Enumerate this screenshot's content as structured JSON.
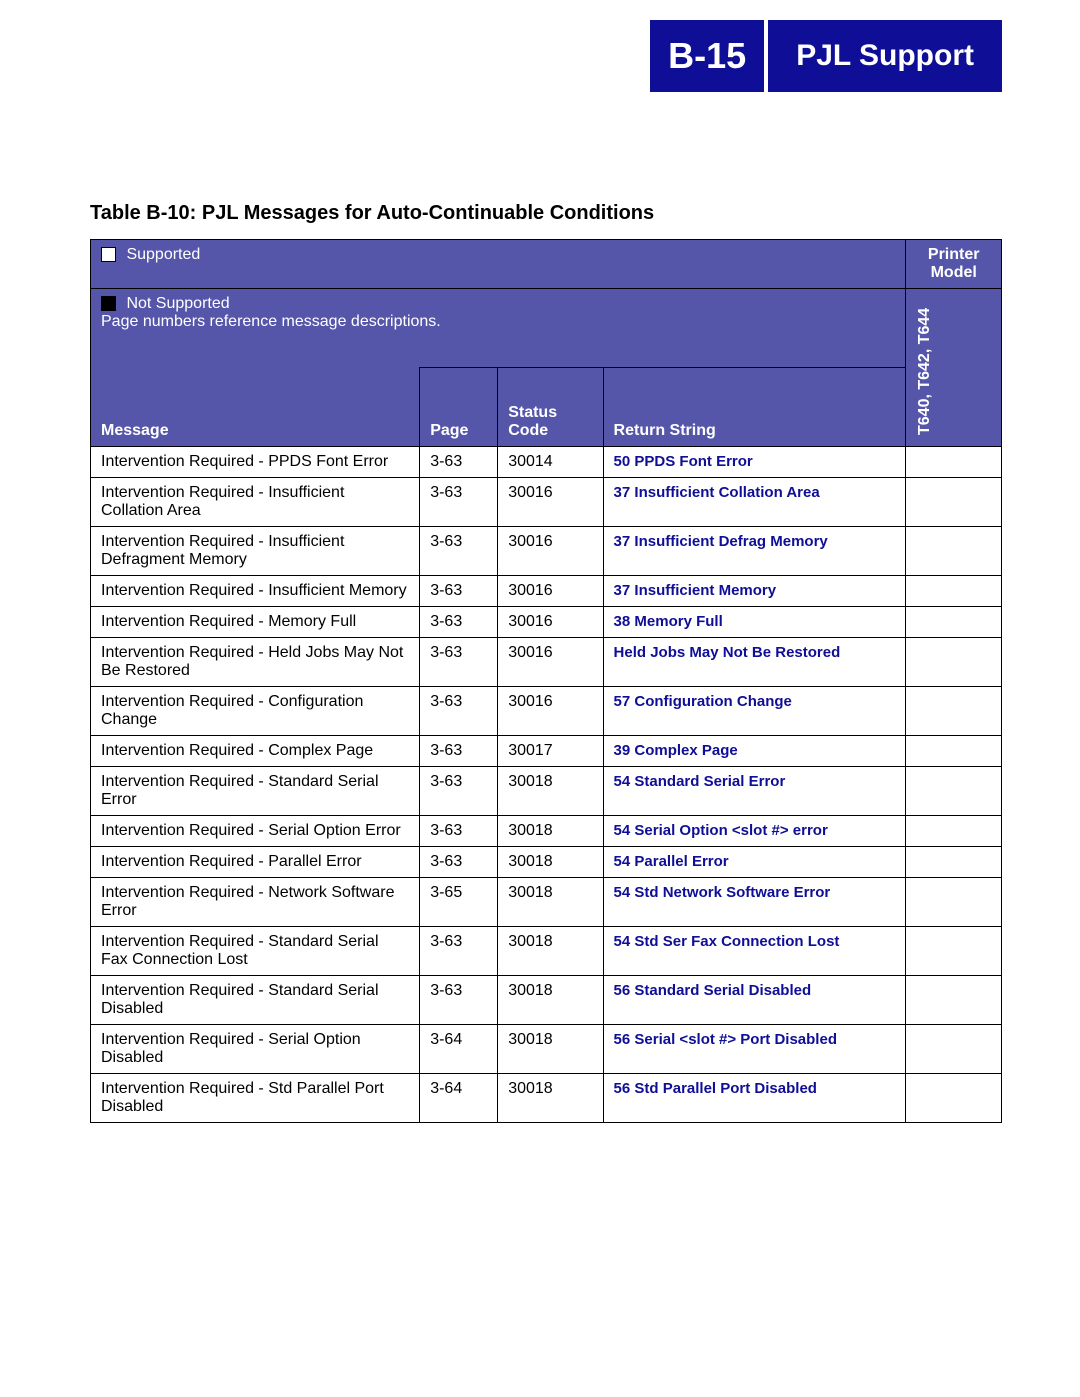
{
  "colors": {
    "header_bg": "#0f0e96",
    "header_fg": "#ffffff",
    "table_header_bg": "#5555aa",
    "table_header_fg": "#ffffff",
    "link_color": "#0f0e96",
    "body_text": "#000000"
  },
  "header": {
    "page_code": "B-15",
    "section_title": "PJL Support"
  },
  "table": {
    "caption": "Table B-10:  PJL Messages for Auto-Continuable Conditions",
    "legend": {
      "supported": "Supported",
      "not_supported": "Not Supported",
      "note": "Page numbers reference message descriptions."
    },
    "columns": {
      "message": "Message",
      "page": "Page",
      "status_code": "Status Code",
      "return_string": "Return String",
      "printer_model": "Printer Model",
      "model_list": "T640, T642, T644"
    },
    "rows": [
      {
        "message": "Intervention Required - PPDS Font Error",
        "page": "3-63",
        "code": "30014",
        "ret": "50 PPDS Font Error"
      },
      {
        "message": "Intervention Required - Insufficient Collation Area",
        "page": "3-63",
        "code": "30016",
        "ret": "37 Insufficient Collation Area"
      },
      {
        "message": "Intervention Required - Insufficient Defragment Memory",
        "page": "3-63",
        "code": "30016",
        "ret": "37 Insufficient Defrag Memory"
      },
      {
        "message": "Intervention Required - Insufficient Memory",
        "page": "3-63",
        "code": "30016",
        "ret": "37 Insufficient Memory"
      },
      {
        "message": "Intervention Required - Memory Full",
        "page": "3-63",
        "code": "30016",
        "ret": "38 Memory Full"
      },
      {
        "message": "Intervention Required - Held Jobs May Not Be Restored",
        "page": "3-63",
        "code": "30016",
        "ret": "Held Jobs May Not Be Restored"
      },
      {
        "message": "Intervention Required - Configuration Change",
        "page": "3-63",
        "code": "30016",
        "ret": "57 Configuration Change"
      },
      {
        "message": "Intervention Required - Complex Page",
        "page": "3-63",
        "code": "30017",
        "ret": "39 Complex Page"
      },
      {
        "message": "Intervention Required - Standard Serial Error",
        "page": "3-63",
        "code": "30018",
        "ret": "54 Standard Serial Error"
      },
      {
        "message": "Intervention Required - Serial Option Error",
        "page": "3-63",
        "code": "30018",
        "ret": "54 Serial Option <slot #> error"
      },
      {
        "message": "Intervention Required - Parallel Error",
        "page": "3-63",
        "code": "30018",
        "ret": "54 Parallel Error"
      },
      {
        "message": "Intervention Required - Network Software Error",
        "page": "3-65",
        "code": "30018",
        "ret": "54 Std Network Software Error"
      },
      {
        "message": "Intervention Required - Standard Serial Fax Connection Lost",
        "page": "3-63",
        "code": "30018",
        "ret": "54 Std Ser Fax Connection Lost"
      },
      {
        "message": "Intervention Required - Standard Serial Disabled",
        "page": "3-63",
        "code": "30018",
        "ret": "56 Standard Serial Disabled"
      },
      {
        "message": "Intervention Required - Serial Option Disabled",
        "page": "3-64",
        "code": "30018",
        "ret": "56 Serial <slot #> Port Disabled"
      },
      {
        "message": "Intervention Required - Std Parallel Port Disabled",
        "page": "3-64",
        "code": "30018",
        "ret": "56 Std Parallel Port Disabled"
      }
    ]
  }
}
